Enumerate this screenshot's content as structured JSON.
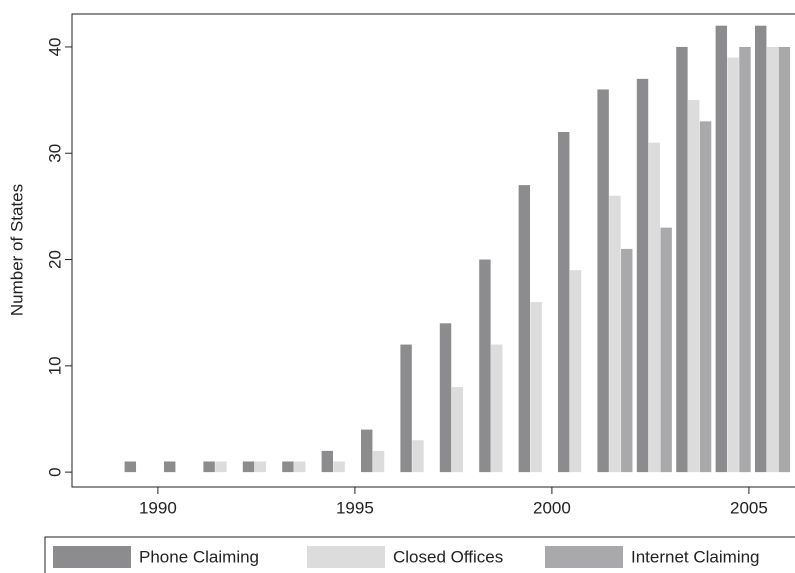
{
  "chart_data": {
    "type": "bar",
    "x": [
      1989,
      1990,
      1991,
      1992,
      1993,
      1994,
      1995,
      1996,
      1997,
      1998,
      1999,
      2000,
      2001,
      2002,
      2003,
      2004,
      2005
    ],
    "series": [
      {
        "name": "Phone Claiming",
        "color": "#8c8c8e",
        "values": [
          1,
          1,
          1,
          1,
          1,
          2,
          4,
          12,
          14,
          20,
          27,
          32,
          36,
          37,
          40,
          42,
          42
        ]
      },
      {
        "name": "Closed Offices",
        "color": "#dcdcdc",
        "values": [
          0,
          0,
          1,
          1,
          1,
          1,
          2,
          3,
          8,
          12,
          16,
          19,
          26,
          31,
          35,
          39,
          40
        ]
      },
      {
        "name": "Internet Claiming",
        "color": "#a9a9ab",
        "values": [
          0,
          0,
          0,
          0,
          0,
          0,
          0,
          0,
          0,
          0,
          0,
          0,
          21,
          23,
          33,
          40,
          40
        ]
      }
    ],
    "y_label": "Number of States",
    "xlim": [
      1987.82,
      2006.17
    ],
    "xticks": [
      1990,
      1995,
      2000,
      2005
    ],
    "ylim": [
      -1.4,
      43.1
    ],
    "yticks": [
      0,
      10,
      20,
      30,
      40
    ],
    "grid": false,
    "legend": "bottom"
  }
}
